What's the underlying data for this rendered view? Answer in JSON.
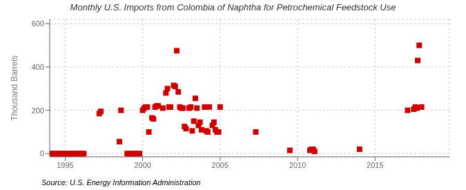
{
  "chart_data": {
    "type": "scatter",
    "title": "Monthly U.S. Imports from Colombia of Naphtha for Petrochemical Feedstock Use",
    "ylabel": "Thousand Barrels",
    "annotations": [
      "Source: U.S. Energy Information Administration"
    ],
    "color": "#cc0000",
    "marker": "square",
    "grid": true,
    "xlim": [
      1994.0,
      2019.8
    ],
    "xticks": [
      1995,
      2000,
      2005,
      2010,
      2015
    ],
    "ylim": [
      -15,
      620
    ],
    "yticks": [
      0,
      200,
      400,
      600
    ],
    "x": [
      1994.1,
      1994.2,
      1994.3,
      1994.4,
      1994.5,
      1994.6,
      1994.7,
      1994.8,
      1994.9,
      1994.95,
      1995.0,
      1995.1,
      1995.2,
      1995.3,
      1995.4,
      1995.5,
      1995.6,
      1995.7,
      1995.8,
      1995.9,
      1996.0,
      1996.1,
      1996.2,
      1997.2,
      1997.3,
      1998.5,
      1998.6,
      1999.0,
      1999.1,
      1999.2,
      1999.3,
      1999.4,
      1999.5,
      1999.6,
      1999.7,
      1999.8,
      2000.0,
      2000.1,
      2000.2,
      2000.3,
      2000.4,
      2000.6,
      2000.7,
      2000.8,
      2000.9,
      2001.0,
      2001.3,
      2001.5,
      2001.6,
      2001.7,
      2001.8,
      2002.0,
      2002.1,
      2002.2,
      2002.3,
      2002.4,
      2002.5,
      2002.6,
      2002.7,
      2002.8,
      2003.0,
      2003.1,
      2003.2,
      2003.3,
      2003.4,
      2003.5,
      2003.6,
      2003.7,
      2003.8,
      2004.0,
      2004.1,
      2004.2,
      2004.3,
      2004.5,
      2004.6,
      2004.7,
      2004.8,
      2004.9,
      2005.0,
      2007.3,
      2009.5,
      2010.8,
      2010.9,
      2011.0,
      2011.1,
      2014.0,
      2017.1,
      2017.5,
      2017.6,
      2017.7,
      2017.75,
      2017.85,
      2018.0
    ],
    "values": [
      0,
      0,
      0,
      0,
      0,
      0,
      0,
      0,
      0,
      0,
      0,
      0,
      0,
      0,
      0,
      0,
      0,
      0,
      0,
      0,
      0,
      0,
      0,
      185,
      195,
      55,
      200,
      0,
      0,
      0,
      0,
      0,
      0,
      0,
      0,
      0,
      200,
      210,
      215,
      215,
      100,
      165,
      160,
      215,
      220,
      220,
      210,
      280,
      300,
      215,
      215,
      315,
      310,
      475,
      285,
      215,
      210,
      210,
      125,
      115,
      210,
      215,
      105,
      150,
      255,
      210,
      130,
      145,
      110,
      215,
      105,
      100,
      215,
      130,
      145,
      110,
      100,
      100,
      215,
      100,
      15,
      15,
      20,
      20,
      10,
      20,
      200,
      205,
      215,
      210,
      430,
      500,
      215
    ]
  }
}
